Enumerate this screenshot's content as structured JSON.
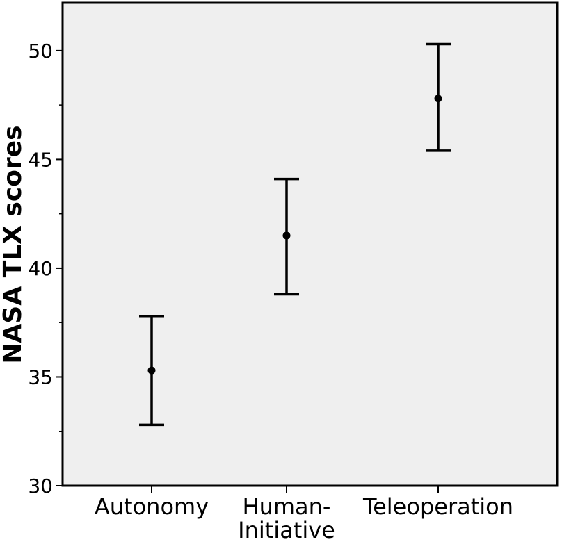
{
  "chart_data": {
    "type": "scatter",
    "title": "",
    "xlabel": "",
    "ylabel": "NASA TLX scores",
    "ylim": [
      30,
      52.2
    ],
    "yticks": [
      30,
      35,
      40,
      45,
      50
    ],
    "grid": false,
    "plot_background": "#efefef",
    "categories": [
      {
        "label": [
          "Autonomy"
        ],
        "mean": 35.3,
        "lower": 32.8,
        "upper": 37.8
      },
      {
        "label": [
          "Human-",
          "Initiative"
        ],
        "mean": 41.5,
        "lower": 38.8,
        "upper": 44.1
      },
      {
        "label": [
          "Teleoperation"
        ],
        "mean": 47.8,
        "lower": 45.4,
        "upper": 50.3
      }
    ]
  }
}
